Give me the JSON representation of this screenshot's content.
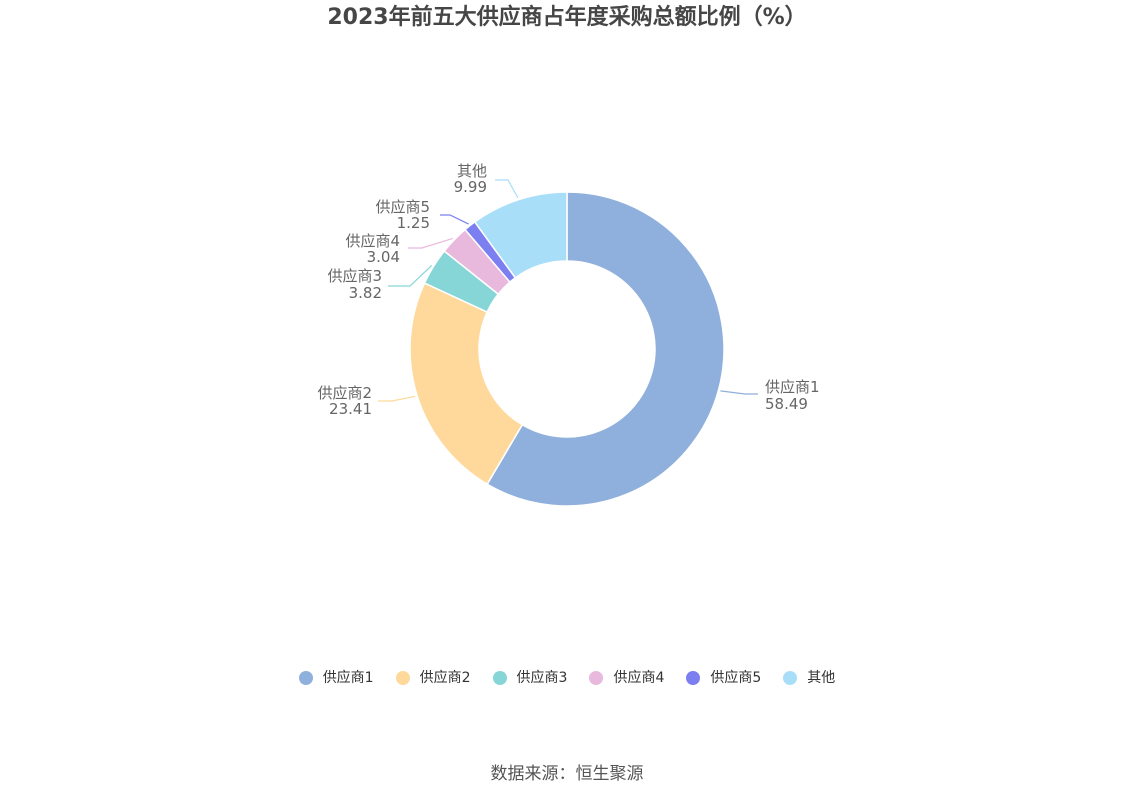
{
  "chart_data": {
    "type": "pie",
    "title": "2023年前五大供应商占年度采购总额比例（%）",
    "categories": [
      "供应商1",
      "供应商2",
      "供应商3",
      "供应商4",
      "供应商5",
      "其他"
    ],
    "values": [
      58.49,
      23.41,
      3.82,
      3.04,
      1.25,
      9.99
    ],
    "value_labels": [
      "58.49",
      "23.41",
      "3.82",
      "3.04",
      "1.25",
      "9.99"
    ],
    "colors": [
      "#8fafdc",
      "#fed99b",
      "#86d6d7",
      "#e8b9dd",
      "#7b7ff0",
      "#a9def9"
    ],
    "donut": true,
    "start": "12 o'clock, clockwise",
    "legend_position": "bottom",
    "source": "数据来源：恒生聚源"
  }
}
